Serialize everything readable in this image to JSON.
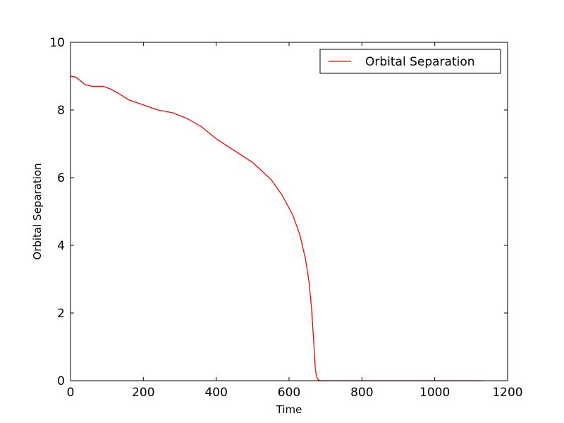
{
  "chart_data": {
    "type": "line",
    "title": "",
    "xlabel": "Time",
    "ylabel": "Orbital Separation",
    "xlim": [
      0,
      1200
    ],
    "ylim": [
      0,
      10
    ],
    "x_ticks": [
      "0",
      "200",
      "400",
      "600",
      "800",
      "1000",
      "1200"
    ],
    "y_ticks": [
      "0",
      "2",
      "4",
      "6",
      "8",
      "10"
    ],
    "grid": false,
    "legend": {
      "placement": "top-right",
      "entries": [
        "Orbital Separation"
      ]
    },
    "series": [
      {
        "name": "Orbital Separation",
        "color": "#ff0000",
        "x": [
          0,
          15,
          40,
          60,
          90,
          110,
          130,
          160,
          200,
          240,
          280,
          320,
          360,
          400,
          450,
          500,
          550,
          580,
          610,
          630,
          645,
          655,
          662,
          668,
          672,
          676,
          680,
          685,
          690,
          700,
          800,
          1000,
          1130
        ],
        "y": [
          9.0,
          8.97,
          8.75,
          8.7,
          8.7,
          8.62,
          8.5,
          8.3,
          8.15,
          8.0,
          7.92,
          7.75,
          7.5,
          7.15,
          6.8,
          6.45,
          5.95,
          5.5,
          4.9,
          4.3,
          3.6,
          2.9,
          2.1,
          1.1,
          0.35,
          0.1,
          0.03,
          0.0,
          0.0,
          0.0,
          0.0,
          0.0,
          0.0
        ]
      }
    ]
  }
}
